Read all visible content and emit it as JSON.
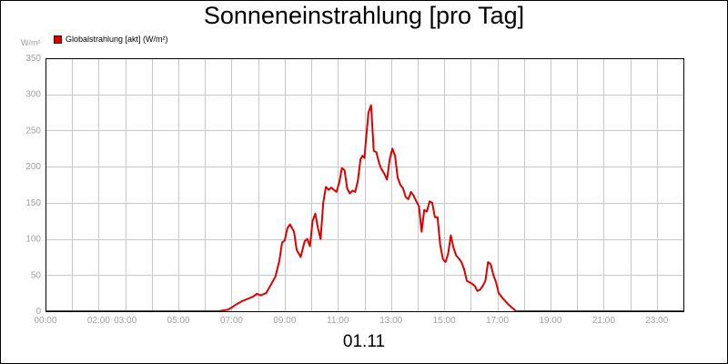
{
  "chart_data": {
    "type": "line",
    "title": "Sonneneinstrahlung [pro Tag]",
    "xlabel": "01.11",
    "y_unit": "W/m²",
    "ylim": [
      0,
      350
    ],
    "xlim_hours": [
      0,
      24
    ],
    "y_ticks": [
      "0",
      "50",
      "100",
      "150",
      "200",
      "250",
      "300",
      "350"
    ],
    "x_ticks": [
      {
        "hour": 0,
        "label": "00:00"
      },
      {
        "hour": 2,
        "label": "02:00"
      },
      {
        "hour": 3,
        "label": "03:00"
      },
      {
        "hour": 5,
        "label": "05:00"
      },
      {
        "hour": 7,
        "label": "07:00"
      },
      {
        "hour": 9,
        "label": "09:00"
      },
      {
        "hour": 11,
        "label": "11:00"
      },
      {
        "hour": 13,
        "label": "13:00"
      },
      {
        "hour": 15,
        "label": "15:00"
      },
      {
        "hour": 17,
        "label": "17:00"
      },
      {
        "hour": 19,
        "label": "19:00"
      },
      {
        "hour": 21,
        "label": "21:00"
      },
      {
        "hour": 23,
        "label": "23:00"
      }
    ],
    "grid": true,
    "legend_position": "top-left",
    "series": [
      {
        "name": "Globalstrahlung [akt] (W/m²)",
        "color": "#dd0000",
        "x": [
          0,
          6.5,
          6.85,
          7.0,
          7.2,
          7.4,
          7.6,
          7.8,
          7.95,
          8.1,
          8.3,
          8.5,
          8.65,
          8.8,
          8.9,
          9.0,
          9.1,
          9.2,
          9.35,
          9.45,
          9.6,
          9.75,
          9.85,
          9.95,
          10.05,
          10.15,
          10.25,
          10.35,
          10.45,
          10.55,
          10.65,
          10.75,
          10.85,
          10.95,
          11.05,
          11.15,
          11.25,
          11.35,
          11.45,
          11.55,
          11.65,
          11.75,
          11.85,
          11.92,
          12.0,
          12.05,
          12.15,
          12.25,
          12.35,
          12.45,
          12.55,
          12.62,
          12.75,
          12.85,
          12.95,
          13.05,
          13.15,
          13.25,
          13.35,
          13.45,
          13.55,
          13.65,
          13.75,
          13.85,
          13.95,
          14.05,
          14.15,
          14.25,
          14.35,
          14.45,
          14.55,
          14.65,
          14.75,
          14.85,
          14.95,
          15.05,
          15.15,
          15.25,
          15.35,
          15.45,
          15.55,
          15.65,
          15.75,
          15.85,
          15.95,
          16.05,
          16.15,
          16.25,
          16.35,
          16.45,
          16.55,
          16.65,
          16.75,
          16.85,
          16.95,
          17.05,
          17.2,
          17.4,
          17.7,
          24
        ],
        "y": [
          0,
          0,
          2,
          5,
          10,
          14,
          17,
          20,
          24,
          22,
          25,
          38,
          48,
          70,
          95,
          98,
          115,
          120,
          110,
          85,
          75,
          97,
          100,
          90,
          125,
          135,
          115,
          100,
          150,
          172,
          168,
          171,
          168,
          165,
          178,
          198,
          195,
          170,
          163,
          167,
          165,
          180,
          210,
          215,
          212,
          235,
          275,
          285,
          222,
          220,
          205,
          198,
          190,
          182,
          210,
          225,
          215,
          185,
          175,
          170,
          158,
          155,
          165,
          160,
          152,
          145,
          110,
          140,
          138,
          152,
          150,
          130,
          130,
          92,
          72,
          68,
          80,
          105,
          88,
          77,
          73,
          68,
          58,
          42,
          40,
          38,
          35,
          28,
          30,
          35,
          42,
          68,
          65,
          50,
          40,
          25,
          18,
          10,
          0,
          0
        ]
      }
    ]
  }
}
